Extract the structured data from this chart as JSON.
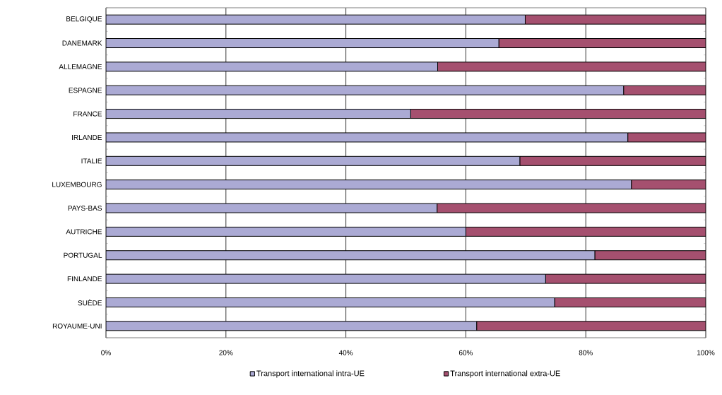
{
  "chart_data": {
    "type": "bar",
    "orientation": "horizontal",
    "stacked": true,
    "categories": [
      "BELGIQUE",
      "DANEMARK",
      "ALLEMAGNE",
      "ESPAGNE",
      "FRANCE",
      "IRLANDE",
      "ITALIE",
      "LUXEMBOURG",
      "PAYS-BAS",
      "AUTRICHE",
      "PORTUGAL",
      "FINLANDE",
      "SUÈDE",
      "ROYAUME-UNI"
    ],
    "series": [
      {
        "name": "Transport international intra-UE",
        "color": "#abaad4",
        "values": [
          69.9,
          65.5,
          55.3,
          86.3,
          50.8,
          87.0,
          69.0,
          87.6,
          55.2,
          60.0,
          81.5,
          73.3,
          74.8,
          61.8
        ]
      },
      {
        "name": "Transport international extra-UE",
        "color": "#a5506f",
        "values": [
          30.1,
          34.5,
          44.7,
          13.7,
          49.2,
          13.0,
          31.0,
          12.4,
          44.8,
          40.0,
          18.5,
          26.7,
          25.2,
          38.2
        ]
      }
    ],
    "xlim": [
      0,
      100
    ],
    "xticks": [
      {
        "value": 0,
        "label": "0%"
      },
      {
        "value": 20,
        "label": "20%"
      },
      {
        "value": 40,
        "label": "40%"
      },
      {
        "value": 60,
        "label": "60%"
      },
      {
        "value": 80,
        "label": "80%"
      },
      {
        "value": 100,
        "label": "100%"
      }
    ],
    "grid": "x",
    "legend": "bottom"
  }
}
